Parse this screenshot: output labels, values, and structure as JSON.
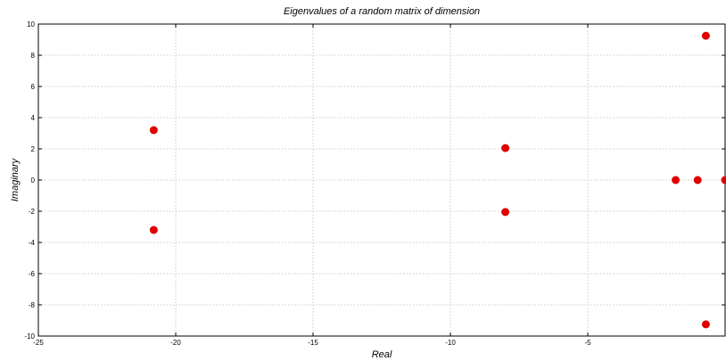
{
  "chart_data": {
    "type": "scatter",
    "title": "Eigenvalues of a random matrix of dimension",
    "xlabel": "Real",
    "ylabel": "Imaginary",
    "xlim": [
      -25,
      0
    ],
    "ylim": [
      -10,
      10
    ],
    "xticks": [
      -25,
      -20,
      -15,
      -10,
      -5,
      0
    ],
    "xtick_labels": [
      "-25",
      "-20",
      "-15",
      "-10",
      "-5",
      ""
    ],
    "yticks": [
      -10,
      -8,
      -6,
      -4,
      -2,
      0,
      2,
      4,
      6,
      8,
      10
    ],
    "ytick_labels": [
      "-10",
      "-8",
      "-6",
      "-4",
      "-2",
      "0",
      "2",
      "4",
      "6",
      "8",
      "10"
    ],
    "grid": true,
    "marker_color": "#e00000",
    "points": [
      {
        "x": -20.8,
        "y": 3.2
      },
      {
        "x": -20.8,
        "y": -3.2
      },
      {
        "x": -8.0,
        "y": 2.05
      },
      {
        "x": -8.0,
        "y": -2.05
      },
      {
        "x": -1.8,
        "y": 0
      },
      {
        "x": -1.0,
        "y": 0
      },
      {
        "x": 0,
        "y": 0
      },
      {
        "x": -0.7,
        "y": 9.25
      },
      {
        "x": -0.7,
        "y": -9.25
      }
    ]
  }
}
